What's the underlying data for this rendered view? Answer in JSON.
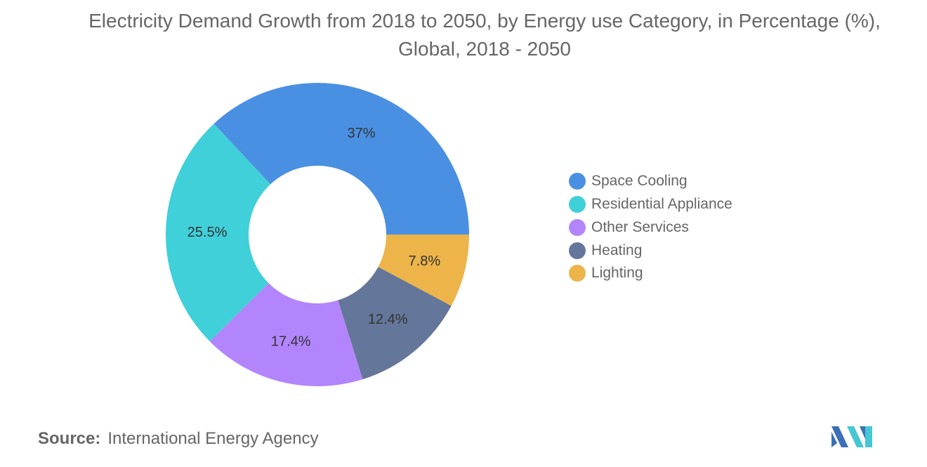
{
  "chart_data": {
    "type": "pie",
    "title": "Electricity Demand Growth from 2018 to 2050, by Energy use Category, in Percentage (%), Global, 2018 - 2050",
    "donut": true,
    "legend_position": "right",
    "slices": [
      {
        "label": "Space Cooling",
        "value": 37,
        "display": "37%",
        "color": "#4a90e2"
      },
      {
        "label": "Lighting",
        "value": 7.8,
        "display": "7.8%",
        "color": "#ecb449"
      },
      {
        "label": "Heating",
        "value": 12.4,
        "display": "12.4%",
        "color": "#647699"
      },
      {
        "label": "Other Services",
        "value": 17.4,
        "display": "17.4%",
        "color": "#b285fd"
      },
      {
        "label": "Residential Appliance",
        "value": 25.5,
        "display": "25.5%",
        "color": "#40d0d9"
      }
    ],
    "legend": [
      {
        "label": "Space Cooling",
        "color": "#4a90e2"
      },
      {
        "label": "Residential Appliance",
        "color": "#40d0d9"
      },
      {
        "label": "Other Services",
        "color": "#b285fd"
      },
      {
        "label": "Heating",
        "color": "#647699"
      },
      {
        "label": "Lighting",
        "color": "#ecb449"
      }
    ]
  },
  "source": {
    "label": "Source:",
    "text": "International Energy Agency"
  },
  "logo": {
    "icon": "mordor-intelligence-logo",
    "colors": [
      "#3b6fb6",
      "#47c6d3"
    ]
  }
}
